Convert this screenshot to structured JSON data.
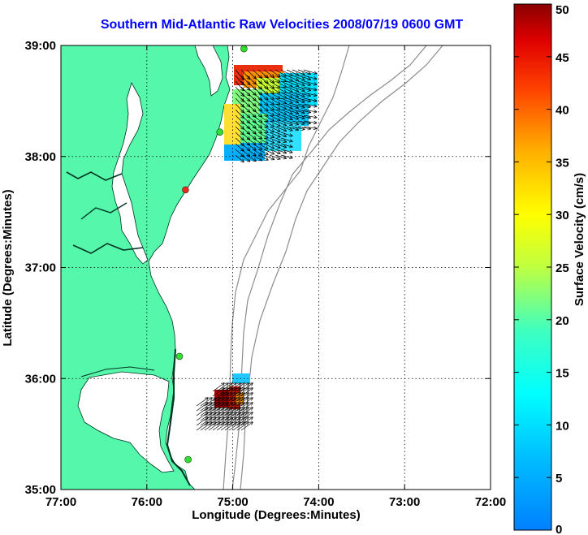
{
  "title": "Southern Mid-Atlantic Raw Velocities 2008/07/19 0600 GMT",
  "map": {
    "xlabel": "Longitude (Degrees:Minutes)",
    "ylabel": "Latitude (Degrees:Minutes)",
    "xticks": [
      "77:00",
      "76:00",
      "75:00",
      "74:00",
      "73:00",
      "72:00"
    ],
    "yticks": [
      "39:00",
      "38:00",
      "37:00",
      "36:00",
      "35:00"
    ],
    "lon_range": [
      -77,
      -72
    ],
    "lat_range": [
      35,
      39
    ],
    "grid": "dotted",
    "land_color": "#55f7aa",
    "water_color": "#ffffff",
    "bathymetry_color": "#8c8c8c"
  },
  "colorbar": {
    "label": "Surface Velocity (cm/s)",
    "ticks": [
      "0",
      "5",
      "10",
      "15",
      "20",
      "25",
      "30",
      "35",
      "40",
      "45",
      "50"
    ],
    "range": [
      0,
      50
    ],
    "colormap": "jet"
  },
  "stations": [
    {
      "name": "station",
      "lon": -74.87,
      "lat": 38.97,
      "color": "#33dd33"
    },
    {
      "name": "station",
      "lon": -75.15,
      "lat": 38.22,
      "color": "#33dd33"
    },
    {
      "name": "station",
      "lon": -75.55,
      "lat": 37.7,
      "color": "#ff2222"
    },
    {
      "name": "station",
      "lon": -75.62,
      "lat": 36.2,
      "color": "#33dd33"
    },
    {
      "name": "station",
      "lon": -75.52,
      "lat": 35.27,
      "color": "#33dd33"
    }
  ]
}
